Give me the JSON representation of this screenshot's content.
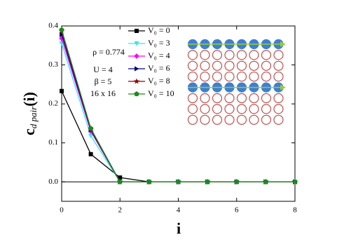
{
  "chart_data": {
    "type": "line",
    "x_label": "i",
    "y_label": {
      "main": "c",
      "sub": "d pair",
      "tail": "(i)"
    },
    "annotations": [
      "ρ = 0.774",
      "U = 4",
      "β = 5",
      "16 x 16"
    ],
    "x": [
      0,
      1,
      2,
      3,
      4,
      5,
      6,
      7,
      8
    ],
    "series": [
      {
        "name": "V₀ = 0",
        "color": "#000000",
        "marker": "square",
        "values": [
          0.233,
          0.071,
          0.011,
          0,
          0,
          0,
          0,
          0,
          0
        ]
      },
      {
        "name": "V₀ = 3",
        "color": "#33e6f0",
        "marker": "triangle-down",
        "values": [
          0.355,
          0.118,
          0,
          0,
          0,
          0,
          0,
          0,
          0
        ]
      },
      {
        "name": "V₀ = 4",
        "color": "#ff00ff",
        "marker": "diamond",
        "values": [
          0.368,
          0.13,
          0,
          0,
          0,
          0,
          0,
          0,
          0
        ]
      },
      {
        "name": "V₀ = 6",
        "color": "#000080",
        "marker": "triangle-right",
        "values": [
          0.378,
          0.133,
          0,
          0,
          0,
          0,
          0,
          0,
          0
        ]
      },
      {
        "name": "V₀ = 8",
        "color": "#8b0000",
        "marker": "star",
        "values": [
          0.387,
          0.135,
          0,
          0,
          0,
          0,
          0,
          0,
          0
        ]
      },
      {
        "name": "V₀ = 10",
        "color": "#1a8a1a",
        "marker": "pentagon",
        "values": [
          0.39,
          0.137,
          0,
          0,
          0,
          0,
          0,
          0,
          0
        ]
      }
    ],
    "hline": 0,
    "xlim": [
      0,
      8
    ],
    "xticks": [
      0,
      2,
      4,
      6,
      8
    ],
    "ylim": [
      -0.05,
      0.4
    ],
    "yticks": [
      {
        "value": 0,
        "label": "0.0"
      },
      0.1,
      0.2,
      0.3,
      0.4
    ]
  }
}
